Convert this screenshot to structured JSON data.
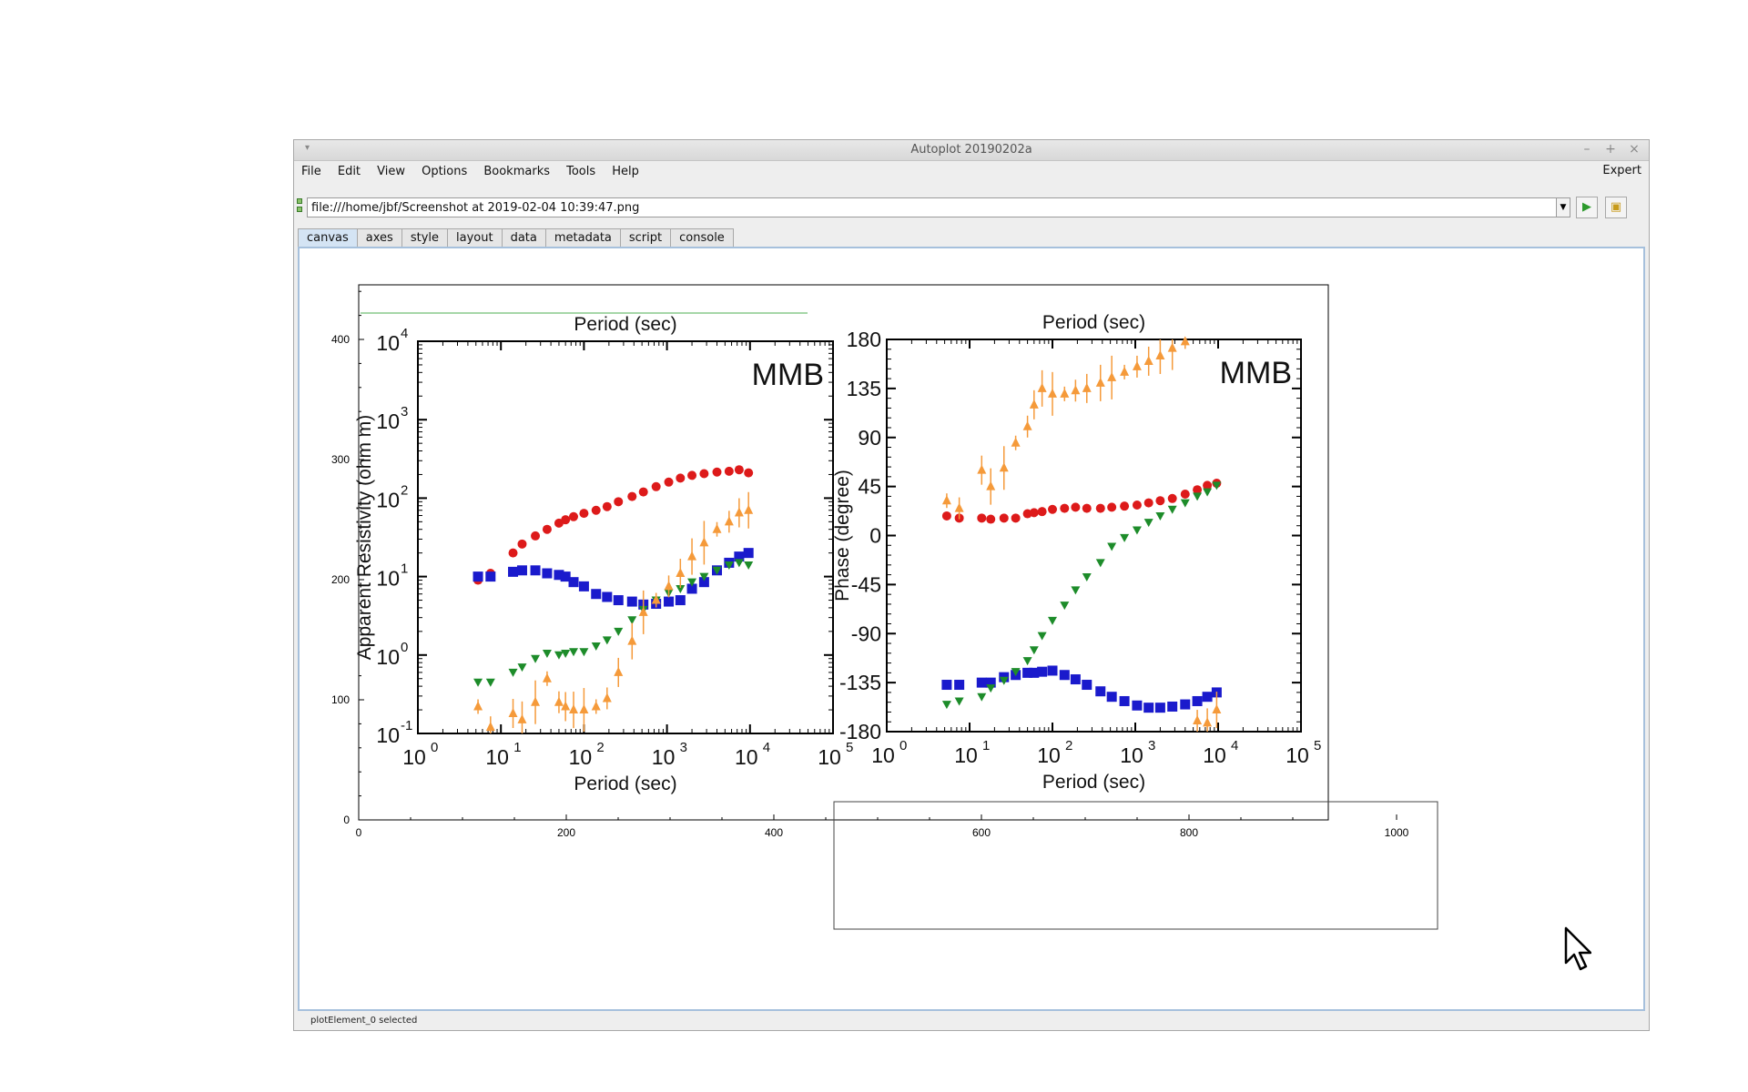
{
  "window": {
    "title": "Autoplot 20190202a",
    "controls": [
      "–",
      "+",
      "×"
    ]
  },
  "menubar": {
    "items": [
      "File",
      "Edit",
      "View",
      "Options",
      "Bookmarks",
      "Tools",
      "Help"
    ],
    "expert": "Expert"
  },
  "address": {
    "value": "file:///home/jbf/Screenshot at 2019-02-04 10:39:47.png"
  },
  "tabs": [
    "canvas",
    "axes",
    "style",
    "layout",
    "data",
    "metadata",
    "script",
    "console"
  ],
  "active_tab": "canvas",
  "status": "plotElement_0 selected",
  "colors": {
    "xy_red": "#dd1a1a",
    "yx_blue": "#1a1acc",
    "yx_orange": "#f59a3a",
    "xy_green": "#1d8c2a",
    "selection_green": "#4caf50",
    "canvas_border": "#a6c0dc"
  },
  "chart_data": [
    {
      "type": "scatter",
      "role": "autoplot-axes",
      "xlim": [
        0,
        1000
      ],
      "ylim": [
        0,
        400
      ],
      "x_ticks": [
        "0",
        "200",
        "400",
        "600",
        "800",
        "1000"
      ],
      "y_ticks": [
        "0",
        "100",
        "200",
        "300",
        "400"
      ]
    },
    {
      "type": "scatter",
      "role": "embedded-image-left",
      "title": "MMB",
      "title_top": "Period (sec)",
      "xlabel": "Period (sec)",
      "ylabel": "Apparent Resistivity (ohm m)",
      "xscale": "log",
      "yscale": "log",
      "xlim": [
        1,
        100000
      ],
      "ylim": [
        0.1,
        10000
      ],
      "x_tick_labels": [
        "10",
        "10",
        "10",
        "10",
        "10",
        "10"
      ],
      "x_tick_exps": [
        "0",
        "1",
        "2",
        "3",
        "4",
        "5"
      ],
      "y_tick_labels": [
        "10",
        "10",
        "10",
        "10",
        "10",
        "10"
      ],
      "y_tick_exps": [
        "-1",
        "0",
        "1",
        "2",
        "3",
        "4"
      ],
      "series": [
        {
          "color": "#dd1a1a",
          "marker": "circle",
          "x": [
            5.3,
            7.5,
            14,
            18,
            26,
            36,
            50,
            60,
            75,
            100,
            140,
            190,
            260,
            380,
            520,
            740,
            1050,
            1450,
            2000,
            2800,
            4000,
            5600,
            7400,
            9600
          ],
          "y": [
            9,
            11,
            20,
            26,
            33,
            40,
            48,
            53,
            58,
            64,
            70,
            78,
            90,
            105,
            120,
            140,
            160,
            180,
            195,
            205,
            215,
            220,
            230,
            210
          ]
        },
        {
          "color": "#1a1acc",
          "marker": "square",
          "x": [
            5.3,
            7.5,
            14,
            18,
            26,
            36,
            50,
            60,
            75,
            100,
            140,
            190,
            260,
            380,
            520,
            740,
            1050,
            1450,
            2000,
            2800,
            4000,
            5600,
            7400,
            9600
          ],
          "y": [
            10,
            10,
            11.5,
            12,
            12,
            11,
            10.5,
            10,
            8.5,
            7.5,
            6,
            5.5,
            5,
            4.8,
            4.4,
            4.5,
            4.8,
            5,
            7,
            8.5,
            12,
            15,
            18,
            20
          ]
        },
        {
          "color": "#1d8c2a",
          "marker": "triangle-down",
          "x": [
            5.3,
            7.5,
            14,
            18,
            26,
            36,
            50,
            60,
            75,
            100,
            140,
            190,
            260,
            380,
            520,
            740,
            1050,
            1450,
            2000,
            2800,
            4000,
            5600,
            7400,
            9600
          ],
          "y": [
            0.45,
            0.45,
            0.6,
            0.7,
            0.9,
            1.05,
            1.0,
            1.05,
            1.1,
            1.1,
            1.3,
            1.55,
            2.0,
            2.8,
            3.8,
            5.0,
            6.2,
            7.0,
            8.5,
            10,
            12,
            14,
            15,
            14
          ]
        },
        {
          "color": "#f59a3a",
          "marker": "triangle-up",
          "error_bars": true,
          "x": [
            5.3,
            7.5,
            14,
            18,
            26,
            36,
            50,
            60,
            75,
            100,
            140,
            190,
            260,
            380,
            520,
            740,
            1050,
            1450,
            2000,
            2800,
            4000,
            5600,
            7400,
            9600
          ],
          "y": [
            0.22,
            0.12,
            0.18,
            0.15,
            0.25,
            0.5,
            0.25,
            0.22,
            0.2,
            0.2,
            0.22,
            0.28,
            0.6,
            1.5,
            3.5,
            5.0,
            7.5,
            11,
            18,
            27,
            40,
            50,
            65,
            70
          ]
        }
      ]
    },
    {
      "type": "scatter",
      "role": "embedded-image-right",
      "title": "MMB",
      "title_top": "Period (sec)",
      "xlabel": "Period (sec)",
      "ylabel": "Phase (degree)",
      "xscale": "log",
      "xlim": [
        1,
        100000
      ],
      "ylim": [
        -180,
        180
      ],
      "x_tick_labels": [
        "10",
        "10",
        "10",
        "10",
        "10",
        "10"
      ],
      "x_tick_exps": [
        "0",
        "1",
        "2",
        "3",
        "4",
        "5"
      ],
      "y_tick_labels": [
        "180",
        "135",
        "90",
        "45",
        "0",
        "-45",
        "-90",
        "-135",
        "-180"
      ],
      "series": [
        {
          "color": "#dd1a1a",
          "marker": "circle",
          "x": [
            5.3,
            7.5,
            14,
            18,
            26,
            36,
            50,
            60,
            75,
            100,
            140,
            190,
            260,
            380,
            520,
            740,
            1050,
            1450,
            2000,
            2800,
            4000,
            5600,
            7400,
            9600
          ],
          "y": [
            18,
            16,
            16,
            15,
            16,
            16,
            20,
            21,
            22,
            24,
            25,
            26,
            25,
            25,
            26,
            27,
            28,
            30,
            32,
            34,
            38,
            42,
            46,
            48
          ]
        },
        {
          "color": "#1a1acc",
          "marker": "square",
          "x": [
            5.3,
            7.5,
            14,
            18,
            26,
            36,
            50,
            60,
            75,
            100,
            140,
            190,
            260,
            380,
            520,
            740,
            1050,
            1450,
            2000,
            2800,
            4000,
            5600,
            7400,
            9600
          ],
          "y": [
            -137,
            -137,
            -135,
            -135,
            -130,
            -128,
            -126,
            -126,
            -125,
            -124,
            -128,
            -132,
            -137,
            -143,
            -148,
            -152,
            -156,
            -158,
            -158,
            -157,
            -155,
            -152,
            -148,
            -144
          ]
        },
        {
          "color": "#1d8c2a",
          "marker": "triangle-down",
          "x": [
            5.3,
            7.5,
            14,
            18,
            26,
            36,
            50,
            60,
            75,
            100,
            140,
            190,
            260,
            380,
            520,
            740,
            1050,
            1450,
            2000,
            2800,
            4000,
            5600,
            7400,
            9600
          ],
          "y": [
            -155,
            -152,
            -148,
            -140,
            -133,
            -125,
            -115,
            -105,
            -92,
            -78,
            -64,
            -50,
            -38,
            -25,
            -10,
            -2,
            5,
            12,
            18,
            24,
            30,
            36,
            40,
            46
          ]
        },
        {
          "color": "#f59a3a",
          "marker": "triangle-up",
          "error_bars": true,
          "x": [
            5.3,
            7.5,
            14,
            18,
            26,
            36,
            50,
            60,
            75,
            100,
            140,
            190,
            260,
            380,
            520,
            740,
            1050,
            1450,
            2000,
            2800,
            4000,
            5600,
            7400,
            9600
          ],
          "y": [
            32,
            25,
            60,
            45,
            62,
            85,
            100,
            120,
            135,
            130,
            130,
            133,
            135,
            140,
            145,
            150,
            155,
            160,
            165,
            172,
            178,
            -170,
            -172,
            -160
          ]
        }
      ]
    }
  ]
}
